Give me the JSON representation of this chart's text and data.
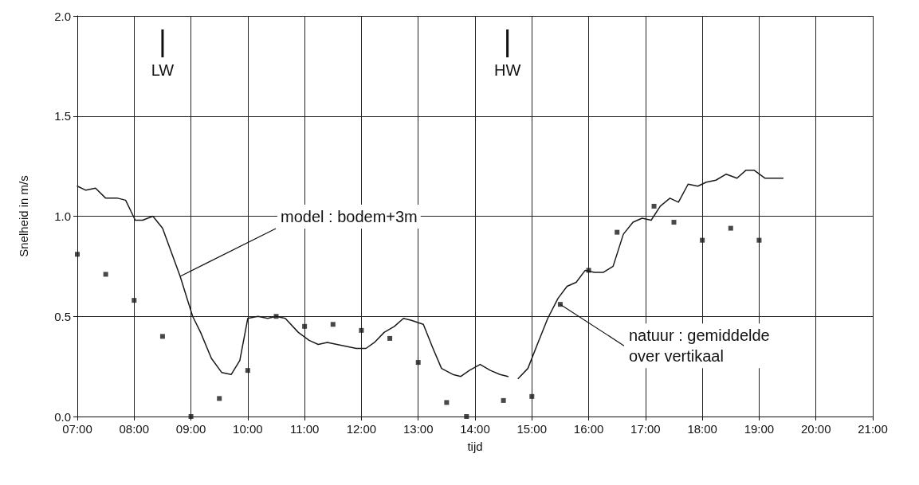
{
  "chart_data": {
    "type": "line",
    "xlabel": "tijd",
    "ylabel": "Snelheid in m/s",
    "xlim": [
      7,
      21
    ],
    "xticks": [
      {
        "value": 7,
        "label": "07:00"
      },
      {
        "value": 8,
        "label": "08:00"
      },
      {
        "value": 9,
        "label": "09:00"
      },
      {
        "value": 10,
        "label": "10:00"
      },
      {
        "value": 11,
        "label": "11:00"
      },
      {
        "value": 12,
        "label": "12:00"
      },
      {
        "value": 13,
        "label": "13:00"
      },
      {
        "value": 14,
        "label": "14:00"
      },
      {
        "value": 15,
        "label": "15:00"
      },
      {
        "value": 16,
        "label": "16:00"
      },
      {
        "value": 17,
        "label": "17:00"
      },
      {
        "value": 18,
        "label": "18:00"
      },
      {
        "value": 19,
        "label": "19:00"
      },
      {
        "value": 20,
        "label": "20:00"
      },
      {
        "value": 21,
        "label": "21:00"
      }
    ],
    "ylim": [
      0,
      2
    ],
    "yticks": [
      {
        "value": 0,
        "label": "0.0"
      },
      {
        "value": 0.5,
        "label": "0.5"
      },
      {
        "value": 1,
        "label": "1.0"
      },
      {
        "value": 1.5,
        "label": "1.5"
      },
      {
        "value": 2,
        "label": "2.0"
      }
    ],
    "grid": true,
    "series": [
      {
        "color": "#1a1a1a",
        "marker": "none",
        "line_style": "solid",
        "x": [
          7.0,
          7.15,
          7.32,
          7.5,
          7.71,
          7.85,
          8.02,
          8.15,
          8.33,
          8.5,
          8.81,
          9.03,
          9.17,
          9.36,
          9.54,
          9.71,
          9.86,
          10.0,
          10.18,
          10.35,
          10.5,
          10.66,
          10.89,
          11.08,
          11.24,
          11.4,
          11.91,
          12.08,
          12.23,
          12.4,
          12.58,
          12.74,
          12.88,
          13.09,
          13.26,
          13.41,
          13.61,
          13.75,
          13.9,
          14.09,
          14.27,
          14.44,
          14.58,
          14.67,
          14.76,
          14.93,
          15.11,
          15.28,
          15.46,
          15.62,
          15.78,
          15.94,
          16.1,
          16.26,
          16.43,
          16.61,
          16.78,
          16.94,
          17.1,
          17.26,
          17.43,
          17.58,
          17.75,
          17.92,
          18.07,
          18.24,
          18.42,
          18.61,
          18.77,
          18.91,
          19.1,
          19.24,
          19.42
        ],
        "values": [
          1.15,
          1.13,
          1.14,
          1.09,
          1.09,
          1.08,
          0.98,
          0.98,
          1.0,
          0.94,
          0.7,
          0.5,
          0.42,
          0.29,
          0.22,
          0.21,
          0.28,
          0.49,
          0.5,
          0.49,
          0.5,
          0.49,
          0.42,
          0.38,
          0.36,
          0.37,
          0.34,
          0.34,
          0.37,
          0.42,
          0.45,
          0.49,
          0.48,
          0.46,
          0.34,
          0.24,
          0.21,
          0.2,
          0.23,
          0.26,
          0.23,
          0.21,
          0.2,
          null,
          0.19,
          0.24,
          0.37,
          0.49,
          0.59,
          0.65,
          0.67,
          0.73,
          0.72,
          0.72,
          0.75,
          0.91,
          0.97,
          0.99,
          0.98,
          1.05,
          1.09,
          1.07,
          1.16,
          1.15,
          1.17,
          1.18,
          1.21,
          1.19,
          1.23,
          1.23,
          1.19,
          1.19,
          1.19
        ]
      },
      {
        "type": "scatter",
        "color": "#1a1a1a",
        "marker": "square",
        "x": [
          7.0,
          7.5,
          8.0,
          8.5,
          9.0,
          9.5,
          10.0,
          10.5,
          11.0,
          11.5,
          12.0,
          12.5,
          13.0,
          13.5,
          13.85,
          14.5,
          15.0,
          15.5,
          16.0,
          16.5,
          17.15,
          17.5,
          18.0,
          18.5,
          19.0
        ],
        "values": [
          0.81,
          0.71,
          0.58,
          0.4,
          0.0,
          0.09,
          0.23,
          0.5,
          0.45,
          0.46,
          0.43,
          0.39,
          0.27,
          0.07,
          0.0,
          0.08,
          0.1,
          0.56,
          0.73,
          0.92,
          1.05,
          0.97,
          0.88,
          0.94,
          0.88
        ]
      }
    ],
    "annotations": [
      {
        "text": "LW",
        "x": 8.5
      },
      {
        "text": "HW",
        "x": 14.57
      },
      {
        "text": "model : bodem+3m",
        "x": 8.81,
        "y": 0.7
      },
      {
        "text": "natuur : gemiddelde\nover vertikaal",
        "x": 15.5,
        "y": 0.56
      }
    ]
  }
}
